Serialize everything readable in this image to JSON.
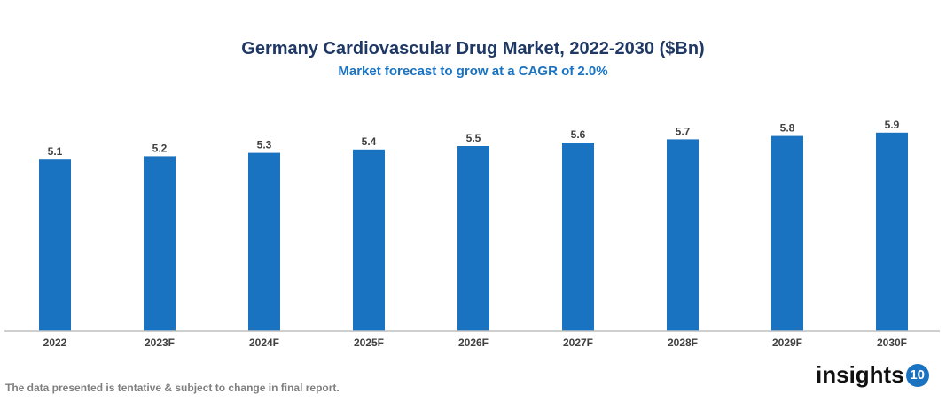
{
  "chart_data": {
    "type": "bar",
    "title": "Germany Cardiovascular Drug Market, 2022-2030 ($Bn)",
    "subtitle": "Market forecast to grow at a CAGR of 2.0%",
    "categories": [
      "2022",
      "2023F",
      "2024F",
      "2025F",
      "2026F",
      "2027F",
      "2028F",
      "2029F",
      "2030F"
    ],
    "values": [
      5.1,
      5.2,
      5.3,
      5.4,
      5.5,
      5.6,
      5.7,
      5.8,
      5.9
    ],
    "xlabel": "",
    "ylabel": "",
    "ylim": [
      0,
      6.5
    ],
    "grid": false,
    "bar_color": "#1a73c1"
  },
  "footnote": "The data presented is tentative & subject to change in final report.",
  "logo": {
    "text": "insights",
    "badge": "10"
  }
}
